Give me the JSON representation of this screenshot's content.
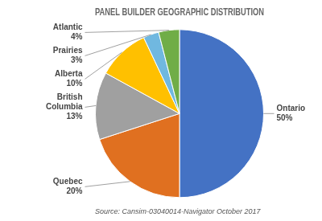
{
  "chart_data": {
    "type": "pie",
    "title": "PANEL BUILDER GEOGRAPHIC DISTRIBUTION",
    "source": "Source: Cansim-03040014-Navigator October 2017",
    "categories": [
      "Ontario",
      "Quebec",
      "British\nColumbia",
      "Alberta",
      "Prairies",
      "Atlantic"
    ],
    "values": [
      50,
      20,
      13,
      10,
      3,
      4
    ],
    "value_labels": [
      "50%",
      "20%",
      "13%",
      "10%",
      "3%",
      "4%"
    ],
    "colors": [
      "#4472C4",
      "#E07020",
      "#A0A0A0",
      "#FFC000",
      "#70B8E0",
      "#70AD47"
    ],
    "data_labels": true
  }
}
